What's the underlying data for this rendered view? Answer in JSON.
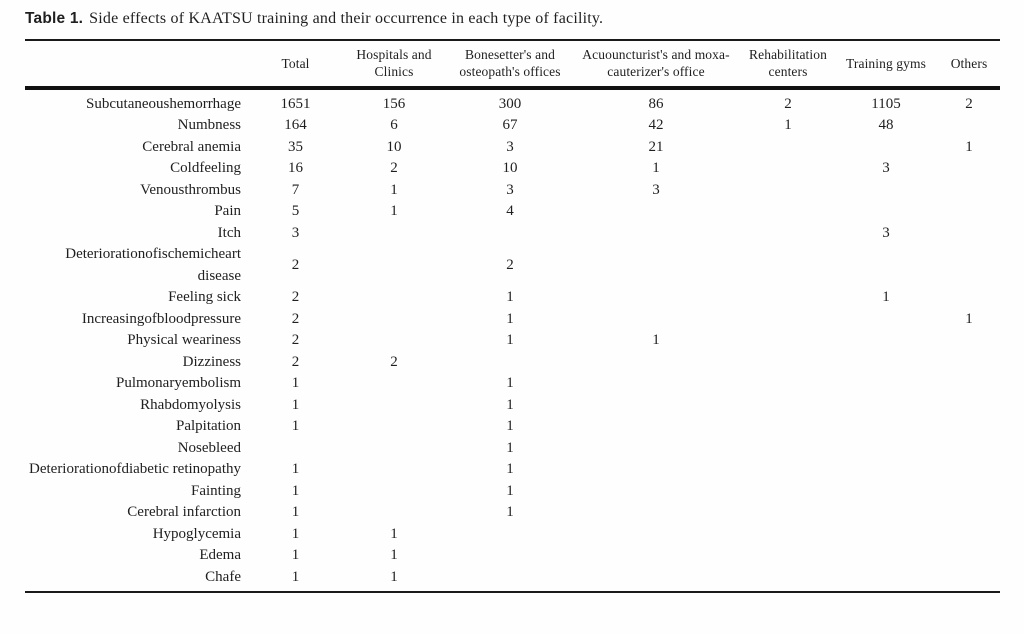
{
  "caption": {
    "label": "Table 1.",
    "text": "Side effects of KAATSU training and their occurrence in each type of facility."
  },
  "table": {
    "columns": [
      "",
      "Total",
      "Hospitals and Clinics",
      "Bonesetter's and osteopath's offices",
      "Acuouncturist's and moxa-cauterizer's office",
      "Rehabilitation centers",
      "Training gyms",
      "Others"
    ],
    "rows": [
      {
        "label": "Subcutaneoushemorrhage",
        "values": [
          "1651",
          "156",
          "300",
          "86",
          "2",
          "1105",
          "2"
        ]
      },
      {
        "label": "Numbness",
        "values": [
          "164",
          "6",
          "67",
          "42",
          "1",
          "48",
          ""
        ]
      },
      {
        "label": "Cerebral anemia",
        "values": [
          "35",
          "10",
          "3",
          "21",
          "",
          "",
          "1"
        ]
      },
      {
        "label": "Coldfeeling",
        "values": [
          "16",
          "2",
          "10",
          "1",
          "",
          "3",
          ""
        ]
      },
      {
        "label": "Venousthrombus",
        "values": [
          "7",
          "1",
          "3",
          "3",
          "",
          "",
          ""
        ]
      },
      {
        "label": "Pain",
        "values": [
          "5",
          "1",
          "4",
          "",
          "",
          "",
          ""
        ]
      },
      {
        "label": "Itch",
        "values": [
          "3",
          "",
          "",
          "",
          "",
          "3",
          ""
        ]
      },
      {
        "label": "Deteriorationofischemicheart disease",
        "values": [
          "2",
          "",
          "2",
          "",
          "",
          "",
          ""
        ]
      },
      {
        "label": "Feeling sick",
        "values": [
          "2",
          "",
          "1",
          "",
          "",
          "1",
          ""
        ]
      },
      {
        "label": "Increasingofbloodpressure",
        "values": [
          "2",
          "",
          "1",
          "",
          "",
          "",
          "1"
        ]
      },
      {
        "label": "Physical weariness",
        "values": [
          "2",
          "",
          "1",
          "1",
          "",
          "",
          ""
        ]
      },
      {
        "label": "Dizziness",
        "values": [
          "2",
          "2",
          "",
          "",
          "",
          "",
          ""
        ]
      },
      {
        "label": "Pulmonaryembolism",
        "values": [
          "1",
          "",
          "1",
          "",
          "",
          "",
          ""
        ]
      },
      {
        "label": "Rhabdomyolysis",
        "values": [
          "1",
          "",
          "1",
          "",
          "",
          "",
          ""
        ]
      },
      {
        "label": "Palpitation",
        "values": [
          "1",
          "",
          "1",
          "",
          "",
          "",
          ""
        ]
      },
      {
        "label": "Nosebleed",
        "values": [
          "",
          "",
          "1",
          "",
          "",
          "",
          ""
        ]
      },
      {
        "label": "Deteriorationofdiabetic retinopathy",
        "values": [
          "1",
          "",
          "1",
          "",
          "",
          "",
          ""
        ]
      },
      {
        "label": "Fainting",
        "values": [
          "1",
          "",
          "1",
          "",
          "",
          "",
          ""
        ]
      },
      {
        "label": "Cerebral infarction",
        "values": [
          "1",
          "",
          "1",
          "",
          "",
          "",
          ""
        ]
      },
      {
        "label": "Hypoglycemia",
        "values": [
          "1",
          "1",
          "",
          "",
          "",
          "",
          ""
        ]
      },
      {
        "label": "Edema",
        "values": [
          "1",
          "1",
          "",
          "",
          "",
          "",
          ""
        ]
      },
      {
        "label": "Chafe",
        "values": [
          "1",
          "1",
          "",
          "",
          "",
          "",
          ""
        ]
      }
    ]
  },
  "colors": {
    "text": "#1f1f1f",
    "rule": "#1a1a1a",
    "background": "#ffffff"
  }
}
